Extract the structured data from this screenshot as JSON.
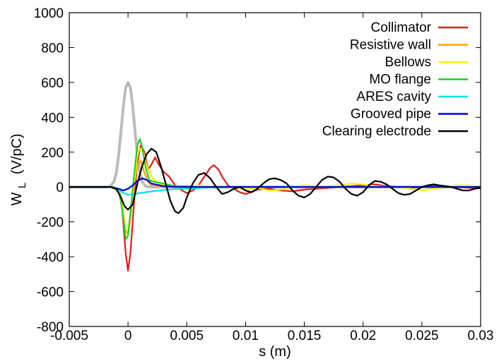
{
  "chart_data": {
    "type": "line",
    "xlabel": "s (m)",
    "ylabel_main": "W",
    "ylabel_sub": "L",
    "ylabel_unit": "(V/pC)",
    "xlim": [
      -0.005,
      0.03
    ],
    "ylim": [
      -800,
      1000
    ],
    "x_ticks": [
      -0.005,
      0,
      0.005,
      0.01,
      0.015,
      0.02,
      0.025,
      0.03
    ],
    "x_tick_labels": [
      "-0.005",
      "0",
      "0.005",
      "0.01",
      "0.015",
      "0.02",
      "0.025",
      "0.03"
    ],
    "y_ticks": [
      -800,
      -600,
      -400,
      -200,
      0,
      200,
      400,
      600,
      800,
      1000
    ],
    "y_tick_labels": [
      "-800",
      "-600",
      "-400",
      "-200",
      "0",
      "200",
      "400",
      "600",
      "800",
      "1000"
    ],
    "grid": false,
    "legend_position": "top-right",
    "series": [
      {
        "name": "Collimator",
        "color": "#e41a1c",
        "points": [
          [
            -0.005,
            0
          ],
          [
            -0.0015,
            0
          ],
          [
            -0.0008,
            -20
          ],
          [
            -0.0005,
            -120
          ],
          [
            -0.0002,
            -380
          ],
          [
            0,
            -480
          ],
          [
            0.0002,
            -380
          ],
          [
            0.0005,
            -100
          ],
          [
            0.0008,
            150
          ],
          [
            0.0011,
            240
          ],
          [
            0.0014,
            200
          ],
          [
            0.0017,
            100
          ],
          [
            0.002,
            130
          ],
          [
            0.0023,
            170
          ],
          [
            0.0026,
            130
          ],
          [
            0.003,
            90
          ],
          [
            0.0035,
            60
          ],
          [
            0.004,
            10
          ],
          [
            0.0045,
            -15
          ],
          [
            0.005,
            -35
          ],
          [
            0.0055,
            -20
          ],
          [
            0.006,
            10
          ],
          [
            0.0065,
            60
          ],
          [
            0.007,
            110
          ],
          [
            0.0073,
            125
          ],
          [
            0.0077,
            100
          ],
          [
            0.008,
            60
          ],
          [
            0.0085,
            10
          ],
          [
            0.009,
            -10
          ],
          [
            0.0095,
            -30
          ],
          [
            0.01,
            -40
          ],
          [
            0.0105,
            -30
          ],
          [
            0.011,
            -15
          ],
          [
            0.012,
            -10
          ],
          [
            0.013,
            -20
          ],
          [
            0.014,
            -25
          ],
          [
            0.015,
            -15
          ],
          [
            0.016,
            -10
          ],
          [
            0.017,
            -5
          ],
          [
            0.018,
            0
          ],
          [
            0.019,
            5
          ],
          [
            0.02,
            10
          ],
          [
            0.021,
            15
          ],
          [
            0.022,
            5
          ],
          [
            0.023,
            0
          ],
          [
            0.024,
            -5
          ],
          [
            0.025,
            0
          ],
          [
            0.026,
            5
          ],
          [
            0.027,
            5
          ],
          [
            0.028,
            0
          ],
          [
            0.029,
            -5
          ],
          [
            0.03,
            -5
          ]
        ]
      },
      {
        "name": "Resistive wall",
        "color": "#ff9f00",
        "points": [
          [
            -0.005,
            0
          ],
          [
            -0.0012,
            0
          ],
          [
            -0.0007,
            -30
          ],
          [
            -0.0004,
            -150
          ],
          [
            -0.0002,
            -250
          ],
          [
            0,
            -270
          ],
          [
            0.0002,
            -180
          ],
          [
            0.0005,
            0
          ],
          [
            0.0008,
            130
          ],
          [
            0.0011,
            150
          ],
          [
            0.0014,
            80
          ],
          [
            0.0017,
            30
          ],
          [
            0.002,
            10
          ],
          [
            0.003,
            5
          ],
          [
            0.005,
            0
          ],
          [
            0.01,
            0
          ],
          [
            0.015,
            0
          ],
          [
            0.02,
            0
          ],
          [
            0.025,
            0
          ],
          [
            0.03,
            0
          ]
        ]
      },
      {
        "name": "Bellows",
        "color": "#f5f500",
        "points": [
          [
            -0.005,
            0
          ],
          [
            -0.0012,
            0
          ],
          [
            -0.0007,
            -30
          ],
          [
            -0.0004,
            -140
          ],
          [
            -0.0002,
            -240
          ],
          [
            0,
            -260
          ],
          [
            0.0002,
            -160
          ],
          [
            0.0005,
            20
          ],
          [
            0.0008,
            180
          ],
          [
            0.001,
            220
          ],
          [
            0.0013,
            200
          ],
          [
            0.0016,
            120
          ],
          [
            0.002,
            60
          ],
          [
            0.0025,
            20
          ],
          [
            0.003,
            10
          ],
          [
            0.004,
            -5
          ],
          [
            0.005,
            0
          ],
          [
            0.006,
            10
          ],
          [
            0.007,
            5
          ],
          [
            0.008,
            5
          ],
          [
            0.009,
            -5
          ],
          [
            0.01,
            -10
          ],
          [
            0.011,
            -5
          ],
          [
            0.012,
            -20
          ],
          [
            0.013,
            -15
          ],
          [
            0.014,
            0
          ],
          [
            0.015,
            10
          ],
          [
            0.016,
            5
          ],
          [
            0.017,
            5
          ],
          [
            0.018,
            10
          ],
          [
            0.019,
            20
          ],
          [
            0.02,
            15
          ],
          [
            0.021,
            5
          ],
          [
            0.022,
            0
          ],
          [
            0.023,
            0
          ],
          [
            0.024,
            -10
          ],
          [
            0.025,
            -20
          ],
          [
            0.026,
            -10
          ],
          [
            0.027,
            0
          ],
          [
            0.028,
            10
          ],
          [
            0.029,
            10
          ],
          [
            0.03,
            5
          ]
        ]
      },
      {
        "name": "MO flange",
        "color": "#1fd21f",
        "points": [
          [
            -0.005,
            0
          ],
          [
            -0.0012,
            0
          ],
          [
            -0.0007,
            -40
          ],
          [
            -0.0004,
            -180
          ],
          [
            -0.0002,
            -300
          ],
          [
            0,
            -280
          ],
          [
            0.0002,
            -150
          ],
          [
            0.0005,
            60
          ],
          [
            0.0008,
            240
          ],
          [
            0.001,
            275
          ],
          [
            0.0012,
            230
          ],
          [
            0.0015,
            110
          ],
          [
            0.0018,
            40
          ],
          [
            0.0022,
            30
          ],
          [
            0.0027,
            25
          ],
          [
            0.003,
            20
          ],
          [
            0.004,
            5
          ],
          [
            0.005,
            5
          ],
          [
            0.006,
            0
          ],
          [
            0.008,
            0
          ],
          [
            0.01,
            0
          ],
          [
            0.015,
            0
          ],
          [
            0.02,
            0
          ],
          [
            0.025,
            0
          ],
          [
            0.03,
            0
          ]
        ]
      },
      {
        "name": "ARES cavity",
        "color": "#00e0f0",
        "points": [
          [
            -0.005,
            0
          ],
          [
            -0.0015,
            0
          ],
          [
            -0.001,
            -10
          ],
          [
            -0.0005,
            -30
          ],
          [
            0,
            -45
          ],
          [
            0.0005,
            -40
          ],
          [
            0.001,
            -35
          ],
          [
            0.0015,
            -30
          ],
          [
            0.002,
            -25
          ],
          [
            0.003,
            -18
          ],
          [
            0.004,
            -12
          ],
          [
            0.005,
            -8
          ],
          [
            0.006,
            -5
          ],
          [
            0.007,
            -3
          ],
          [
            0.008,
            -2
          ],
          [
            0.01,
            0
          ],
          [
            0.015,
            0
          ],
          [
            0.02,
            0
          ],
          [
            0.025,
            0
          ],
          [
            0.03,
            0
          ]
        ]
      },
      {
        "name": "Grooved pipe",
        "color": "#0000e0",
        "points": [
          [
            -0.005,
            0
          ],
          [
            -0.0015,
            0
          ],
          [
            -0.0008,
            -10
          ],
          [
            -0.0004,
            -20
          ],
          [
            0,
            -10
          ],
          [
            0.0004,
            10
          ],
          [
            0.0008,
            35
          ],
          [
            0.0012,
            50
          ],
          [
            0.0016,
            40
          ],
          [
            0.002,
            20
          ],
          [
            0.003,
            5
          ],
          [
            0.004,
            0
          ],
          [
            0.005,
            0
          ],
          [
            0.01,
            0
          ],
          [
            0.015,
            0
          ],
          [
            0.02,
            0
          ],
          [
            0.025,
            0
          ],
          [
            0.03,
            0
          ]
        ]
      },
      {
        "name": "Clearing electrode",
        "color": "#000000",
        "points": [
          [
            -0.005,
            0
          ],
          [
            -0.0015,
            0
          ],
          [
            -0.001,
            -10
          ],
          [
            -0.0006,
            -60
          ],
          [
            -0.0003,
            -110
          ],
          [
            0,
            -130
          ],
          [
            0.0004,
            -100
          ],
          [
            0.0008,
            20
          ],
          [
            0.0012,
            120
          ],
          [
            0.0016,
            190
          ],
          [
            0.002,
            220
          ],
          [
            0.0024,
            200
          ],
          [
            0.0028,
            120
          ],
          [
            0.0032,
            20
          ],
          [
            0.0036,
            -80
          ],
          [
            0.004,
            -140
          ],
          [
            0.0043,
            -150
          ],
          [
            0.0047,
            -120
          ],
          [
            0.005,
            -60
          ],
          [
            0.0055,
            20
          ],
          [
            0.006,
            70
          ],
          [
            0.0065,
            80
          ],
          [
            0.007,
            50
          ],
          [
            0.0075,
            0
          ],
          [
            0.008,
            -40
          ],
          [
            0.0085,
            -30
          ],
          [
            0.009,
            -10
          ],
          [
            0.0095,
            0
          ],
          [
            0.01,
            -20
          ],
          [
            0.0105,
            -30
          ],
          [
            0.011,
            -10
          ],
          [
            0.0115,
            20
          ],
          [
            0.012,
            45
          ],
          [
            0.0125,
            50
          ],
          [
            0.013,
            40
          ],
          [
            0.0135,
            20
          ],
          [
            0.014,
            -20
          ],
          [
            0.0145,
            -50
          ],
          [
            0.015,
            -60
          ],
          [
            0.0155,
            -40
          ],
          [
            0.016,
            0
          ],
          [
            0.0165,
            40
          ],
          [
            0.017,
            60
          ],
          [
            0.0175,
            55
          ],
          [
            0.018,
            30
          ],
          [
            0.0185,
            -10
          ],
          [
            0.019,
            -40
          ],
          [
            0.0195,
            -50
          ],
          [
            0.02,
            -30
          ],
          [
            0.0205,
            10
          ],
          [
            0.021,
            35
          ],
          [
            0.0215,
            30
          ],
          [
            0.022,
            15
          ],
          [
            0.0225,
            -10
          ],
          [
            0.023,
            -35
          ],
          [
            0.0235,
            -45
          ],
          [
            0.024,
            -40
          ],
          [
            0.0245,
            -20
          ],
          [
            0.025,
            0
          ],
          [
            0.0255,
            10
          ],
          [
            0.026,
            15
          ],
          [
            0.0265,
            10
          ],
          [
            0.027,
            5
          ],
          [
            0.0275,
            0
          ],
          [
            0.028,
            -10
          ],
          [
            0.0285,
            -20
          ],
          [
            0.029,
            -20
          ],
          [
            0.0295,
            -10
          ],
          [
            0.03,
            -5
          ]
        ]
      }
    ],
    "extra_curve": {
      "color": "#bbbbbb",
      "points": [
        [
          -0.005,
          0
        ],
        [
          -0.0018,
          0
        ],
        [
          -0.0015,
          5
        ],
        [
          -0.0012,
          30
        ],
        [
          -0.001,
          80
        ],
        [
          -0.0008,
          180
        ],
        [
          -0.0006,
          320
        ],
        [
          -0.0004,
          460
        ],
        [
          -0.0002,
          570
        ],
        [
          0,
          600
        ],
        [
          0.0002,
          570
        ],
        [
          0.0004,
          460
        ],
        [
          0.0006,
          320
        ],
        [
          0.0008,
          180
        ],
        [
          0.001,
          80
        ],
        [
          0.0012,
          30
        ],
        [
          0.0015,
          5
        ],
        [
          0.0018,
          0
        ],
        [
          0.03,
          0
        ]
      ]
    }
  }
}
